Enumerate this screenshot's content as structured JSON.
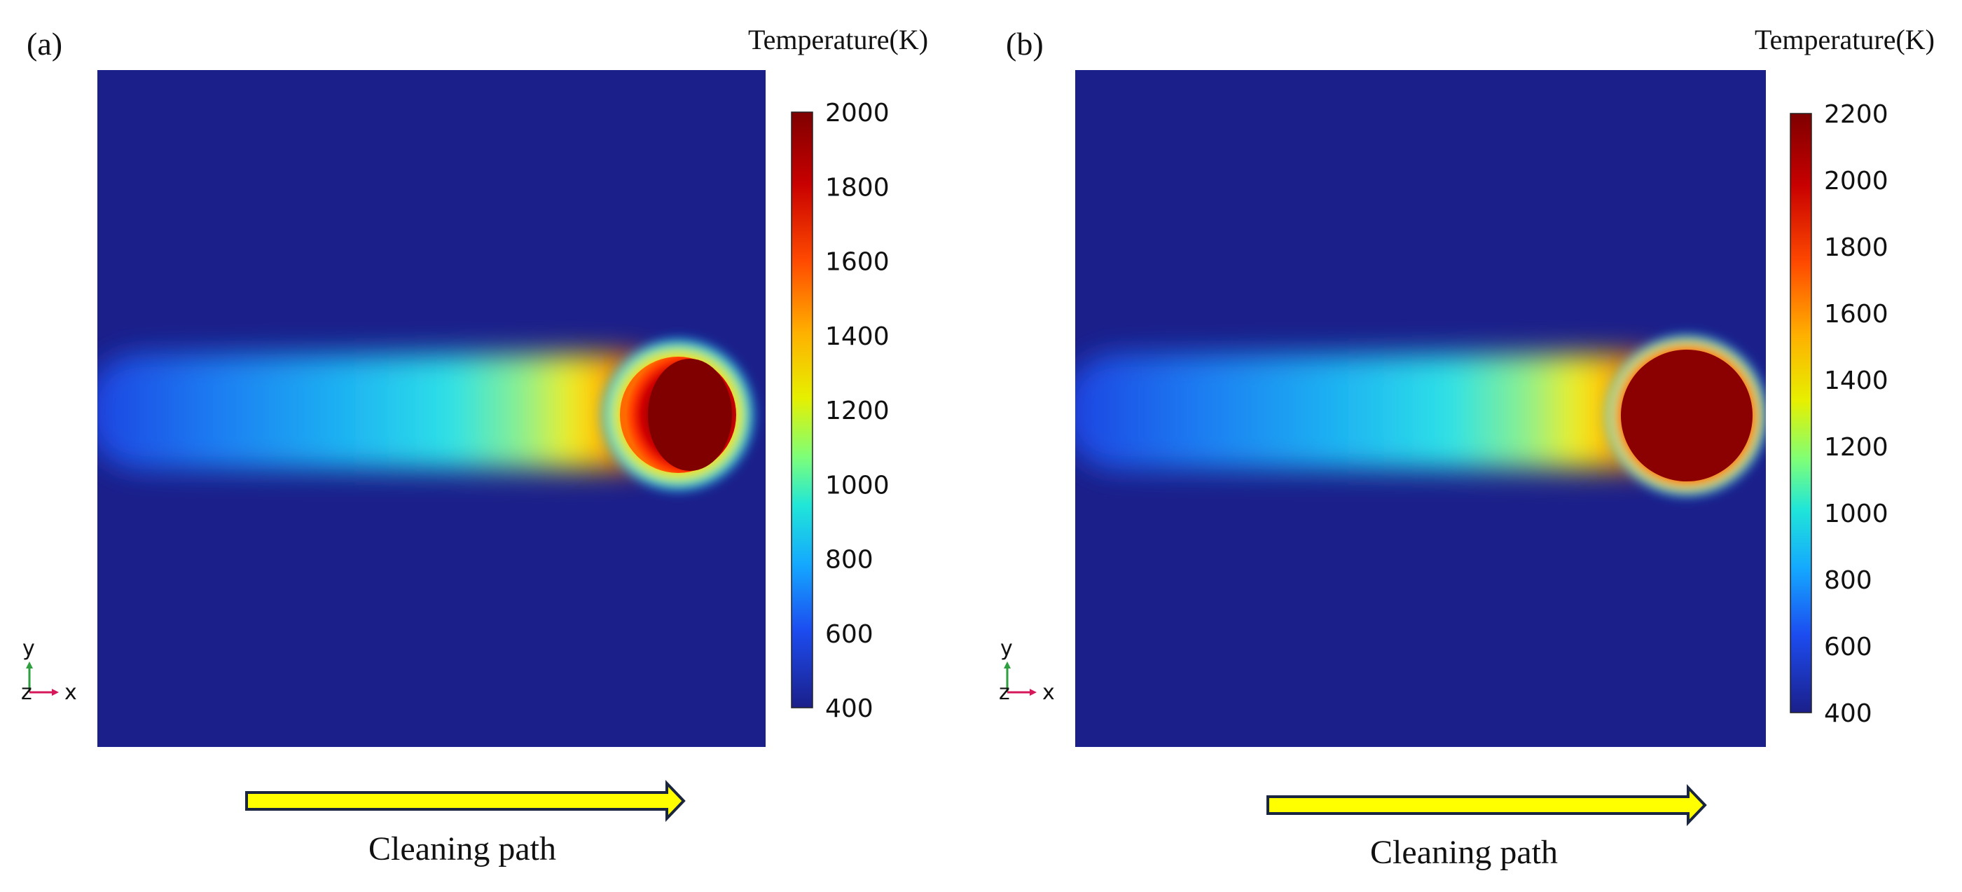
{
  "panels": [
    {
      "id": "a",
      "label": "(a)",
      "colorbar_title": "Temperature(K)",
      "colorbar_ticks": [
        "2000",
        "1800",
        "1600",
        "1400",
        "1200",
        "1000",
        "800",
        "600",
        "400"
      ],
      "colorbar_range": [
        400,
        2000
      ],
      "saturation": "gradient-core",
      "axis_triad": {
        "y": "y",
        "z": "z",
        "x": "x"
      },
      "path_label": "Cleaning path"
    },
    {
      "id": "b",
      "label": "(b)",
      "colorbar_title": "Temperature(K)",
      "colorbar_ticks": [
        "2200",
        "2000",
        "1800",
        "1600",
        "1400",
        "1200",
        "1000",
        "800",
        "600",
        "400"
      ],
      "colorbar_range": [
        400,
        2200
      ],
      "saturation": "solid-core",
      "axis_triad": {
        "y": "y",
        "z": "z",
        "x": "x"
      },
      "path_label": "Cleaning path"
    }
  ],
  "colors": {
    "background_field": "#1b1f8a",
    "arrow_fill": "#ffff00",
    "arrow_stroke": "#1a2540",
    "axis_y": "#2e9e3f",
    "axis_x": "#d6185a"
  }
}
